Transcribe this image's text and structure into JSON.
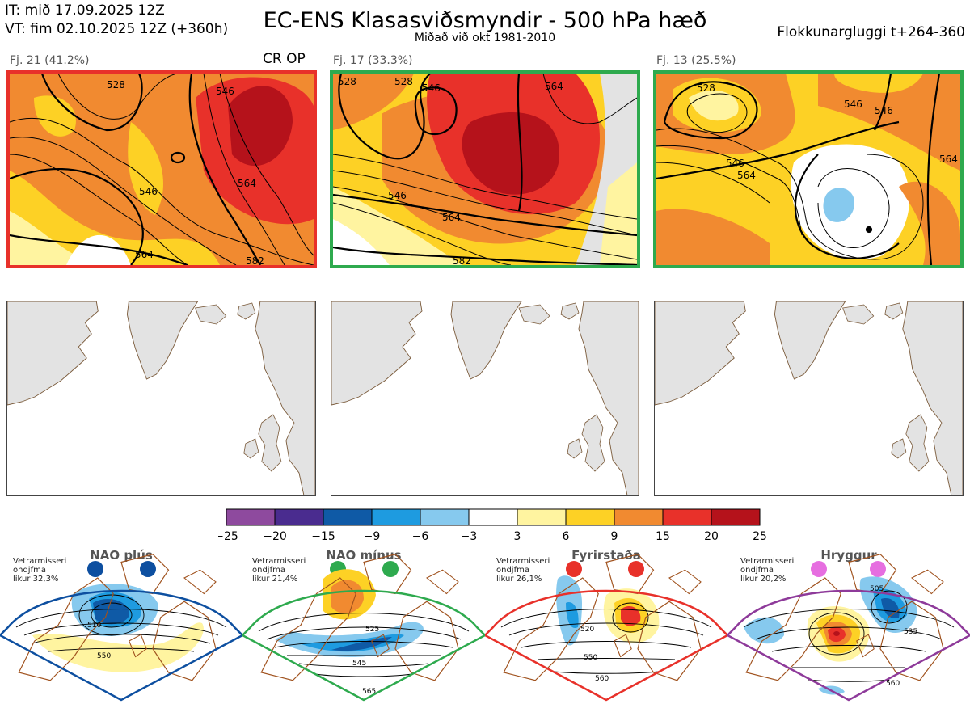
{
  "header": {
    "it": "IT: mið 17.09.2025 12Z",
    "vt": "VT: fim 02.10.2025 12Z  (+360h)",
    "title": "EC-ENS Klasasviðsmyndir - 500 hPa hæð",
    "subtitle": "Miðað við okt 1981-2010",
    "window": "Flokkunargluggi t+264-360"
  },
  "clusters": [
    {
      "label": "Fj. 21 (41.2%)",
      "tag": "CR OP",
      "border_color": "#e8312a",
      "contour_labels": [
        "528",
        "546",
        "546",
        "564",
        "564",
        "582"
      ]
    },
    {
      "label": "Fj. 17 (33.3%)",
      "tag": "",
      "border_color": "#2eaa4e",
      "contour_labels": [
        "528",
        "528",
        "546",
        "546",
        "564",
        "564",
        "582"
      ]
    },
    {
      "label": "Fj. 13 (25.5%)",
      "tag": "",
      "border_color": "#2eaa4e",
      "contour_labels": [
        "528",
        "546",
        "546",
        "546",
        "564",
        "564"
      ]
    }
  ],
  "chart_data": {
    "type": "heatmap",
    "title": "EC-ENS Klasasviðsmyndir - 500 hPa hæð",
    "colorbar": {
      "ticks": [
        "−25",
        "−20",
        "−15",
        "−9",
        "−6",
        "−3",
        "3",
        "6",
        "9",
        "15",
        "20",
        "25"
      ],
      "colors": [
        "#8e4a9e",
        "#4a2c8f",
        "#0f5aa6",
        "#1e9be0",
        "#86c9ee",
        "#ffffff",
        "#fff4a0",
        "#fdd125",
        "#f18a30",
        "#e8312a",
        "#b5121b"
      ]
    },
    "clusters": [
      {
        "name": "Fj. 21",
        "percent": 41.2
      },
      {
        "name": "Fj. 17",
        "percent": 33.3
      },
      {
        "name": "Fj. 13",
        "percent": 25.5
      }
    ]
  },
  "regimes": [
    {
      "name": "NAO plús",
      "line1": "Vetrarmisseri",
      "line2": "ondjfma",
      "line3": "líkur 32,3%",
      "color": "#0d4fa0",
      "dot_color": "#0d4fa0",
      "labels": [
        "510",
        "550"
      ]
    },
    {
      "name": "NAO mínus",
      "line1": "Vetrarmisseri",
      "line2": "ondjfma",
      "line3": "líkur 21,4%",
      "color": "#2eaa4e",
      "dot_color": "#2eaa4e",
      "labels": [
        "525",
        "545",
        "565"
      ]
    },
    {
      "name": "Fyrirstaða",
      "line1": "Vetrarmisseri",
      "line2": "ondjfma",
      "line3": "líkur 26,1%",
      "color": "#e8312a",
      "dot_color": "#e8312a",
      "labels": [
        "520",
        "550",
        "560"
      ]
    },
    {
      "name": "Hryggur",
      "line1": "Vetrarmisseri",
      "line2": "ondjfma",
      "line3": "líkur 20,2%",
      "color": "#8e3a9a",
      "dot_color": "#e66ee0",
      "labels": [
        "505",
        "535",
        "560"
      ]
    }
  ]
}
